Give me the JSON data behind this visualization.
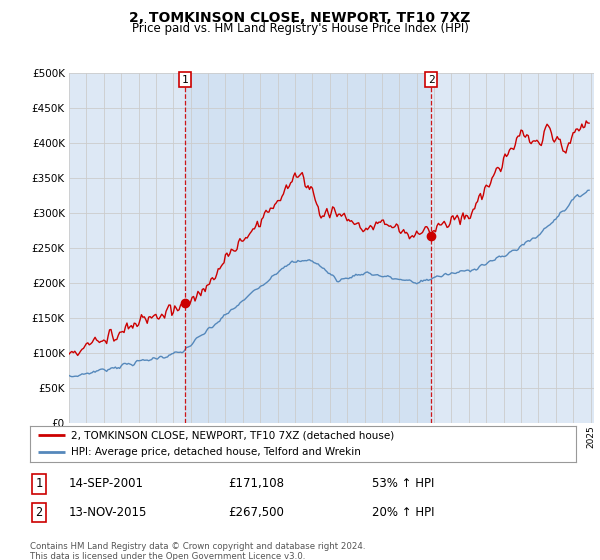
{
  "title": "2, TOMKINSON CLOSE, NEWPORT, TF10 7XZ",
  "subtitle": "Price paid vs. HM Land Registry's House Price Index (HPI)",
  "legend_line1": "2, TOMKINSON CLOSE, NEWPORT, TF10 7XZ (detached house)",
  "legend_line2": "HPI: Average price, detached house, Telford and Wrekin",
  "sale1_date": "14-SEP-2001",
  "sale1_price": 171108,
  "sale2_date": "13-NOV-2015",
  "sale2_price": 267500,
  "sale1_hpi": "53% ↑ HPI",
  "sale2_hpi": "20% ↑ HPI",
  "footnote": "Contains HM Land Registry data © Crown copyright and database right 2024.\nThis data is licensed under the Open Government Licence v3.0.",
  "red_color": "#cc0000",
  "blue_color": "#5588bb",
  "fill_color": "#dde8f5",
  "background_color": "#ffffff",
  "grid_color": "#cccccc",
  "ylim": [
    0,
    500000
  ],
  "yticks": [
    0,
    50000,
    100000,
    150000,
    200000,
    250000,
    300000,
    350000,
    400000,
    450000,
    500000
  ],
  "start_year": 1995,
  "end_year": 2025
}
